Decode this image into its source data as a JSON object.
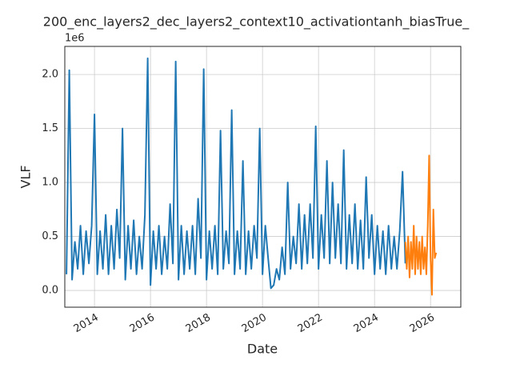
{
  "chart_data": {
    "type": "line",
    "title": "200_enc_layers2_dec_layers2_context10_activationtanh_biasTrue_",
    "x_label": "Date",
    "y_label": "VLF",
    "y_offset_label": "1e6",
    "xlim": [
      2012.94,
      2027.08
    ],
    "xticks": [
      2014,
      2016,
      2018,
      2020,
      2022,
      2024,
      2026
    ],
    "ylim": [
      -0.155,
      2.26
    ],
    "yticks": [
      {
        "value": 0,
        "label": "0.0"
      },
      0.5,
      {
        "value": 1,
        "label": "1.0"
      },
      1.5,
      {
        "value": 2,
        "label": "2.0"
      }
    ],
    "grid": true,
    "series": [
      {
        "color": "#1f77b4",
        "x": [
          2013.0,
          2013.1,
          2013.2,
          2013.3,
          2013.4,
          2013.5,
          2013.6,
          2013.7,
          2013.8,
          2013.9,
          2014.0,
          2014.1,
          2014.2,
          2014.3,
          2014.4,
          2014.5,
          2014.6,
          2014.7,
          2014.8,
          2014.9,
          2015.0,
          2015.1,
          2015.2,
          2015.3,
          2015.4,
          2015.5,
          2015.6,
          2015.7,
          2015.8,
          2015.9,
          2016.0,
          2016.1,
          2016.2,
          2016.3,
          2016.4,
          2016.5,
          2016.6,
          2016.7,
          2016.8,
          2016.9,
          2017.0,
          2017.1,
          2017.2,
          2017.3,
          2017.4,
          2017.5,
          2017.6,
          2017.7,
          2017.8,
          2017.9,
          2018.0,
          2018.1,
          2018.2,
          2018.3,
          2018.4,
          2018.5,
          2018.6,
          2018.7,
          2018.8,
          2018.9,
          2019.0,
          2019.1,
          2019.2,
          2019.3,
          2019.4,
          2019.5,
          2019.6,
          2019.7,
          2019.8,
          2019.9,
          2020.0,
          2020.1,
          2020.2,
          2020.3,
          2020.4,
          2020.5,
          2020.6,
          2020.7,
          2020.8,
          2020.9,
          2021.0,
          2021.1,
          2021.2,
          2021.3,
          2021.4,
          2021.5,
          2021.6,
          2021.7,
          2021.8,
          2021.9,
          2022.0,
          2022.1,
          2022.2,
          2022.3,
          2022.4,
          2022.5,
          2022.6,
          2022.7,
          2022.8,
          2022.9,
          2023.0,
          2023.1,
          2023.2,
          2023.3,
          2023.4,
          2023.5,
          2023.6,
          2023.7,
          2023.8,
          2023.9,
          2024.0,
          2024.1,
          2024.2,
          2024.3,
          2024.4,
          2024.5,
          2024.6,
          2024.7,
          2024.8,
          2024.9,
          2025.0,
          2025.1
        ],
        "values": [
          0.15,
          2.04,
          0.1,
          0.45,
          0.2,
          0.6,
          0.15,
          0.55,
          0.25,
          0.6,
          1.63,
          0.15,
          0.55,
          0.2,
          0.7,
          0.15,
          0.6,
          0.2,
          0.75,
          0.3,
          1.5,
          0.1,
          0.6,
          0.2,
          0.65,
          0.15,
          0.5,
          0.2,
          0.7,
          2.15,
          0.05,
          0.55,
          0.2,
          0.6,
          0.15,
          0.5,
          0.2,
          0.8,
          0.25,
          2.12,
          0.1,
          0.6,
          0.15,
          0.55,
          0.2,
          0.6,
          0.15,
          0.85,
          0.3,
          2.05,
          0.1,
          0.55,
          0.2,
          0.6,
          0.15,
          1.48,
          0.2,
          0.55,
          0.25,
          1.67,
          0.15,
          0.55,
          0.2,
          1.2,
          0.15,
          0.55,
          0.2,
          0.6,
          0.3,
          1.5,
          0.15,
          0.6,
          0.3,
          0.02,
          0.05,
          0.2,
          0.1,
          0.4,
          0.15,
          1.0,
          0.2,
          0.5,
          0.25,
          0.8,
          0.2,
          0.7,
          0.25,
          0.8,
          0.3,
          1.52,
          0.2,
          0.7,
          0.3,
          1.2,
          0.25,
          1.0,
          0.3,
          0.8,
          0.25,
          1.3,
          0.2,
          0.7,
          0.25,
          0.8,
          0.2,
          0.65,
          0.2,
          1.05,
          0.3,
          0.7,
          0.15,
          0.6,
          0.2,
          0.55,
          0.15,
          0.6,
          0.2,
          0.5,
          0.2,
          0.55,
          1.1,
          0.25
        ]
      },
      {
        "color": "#ff7f0e",
        "x": [
          2025.1,
          2025.15,
          2025.2,
          2025.25,
          2025.3,
          2025.35,
          2025.4,
          2025.45,
          2025.5,
          2025.55,
          2025.6,
          2025.65,
          2025.7,
          2025.75,
          2025.8,
          2025.85,
          2025.9,
          2025.95,
          2026.0,
          2026.05,
          2026.1,
          2026.15,
          2026.2
        ],
        "values": [
          0.45,
          0.2,
          0.5,
          0.12,
          0.45,
          0.2,
          0.6,
          0.15,
          0.5,
          0.2,
          0.45,
          0.15,
          0.5,
          0.2,
          0.4,
          0.15,
          0.6,
          1.25,
          0.3,
          -0.04,
          0.75,
          0.3,
          0.35
        ]
      }
    ]
  }
}
